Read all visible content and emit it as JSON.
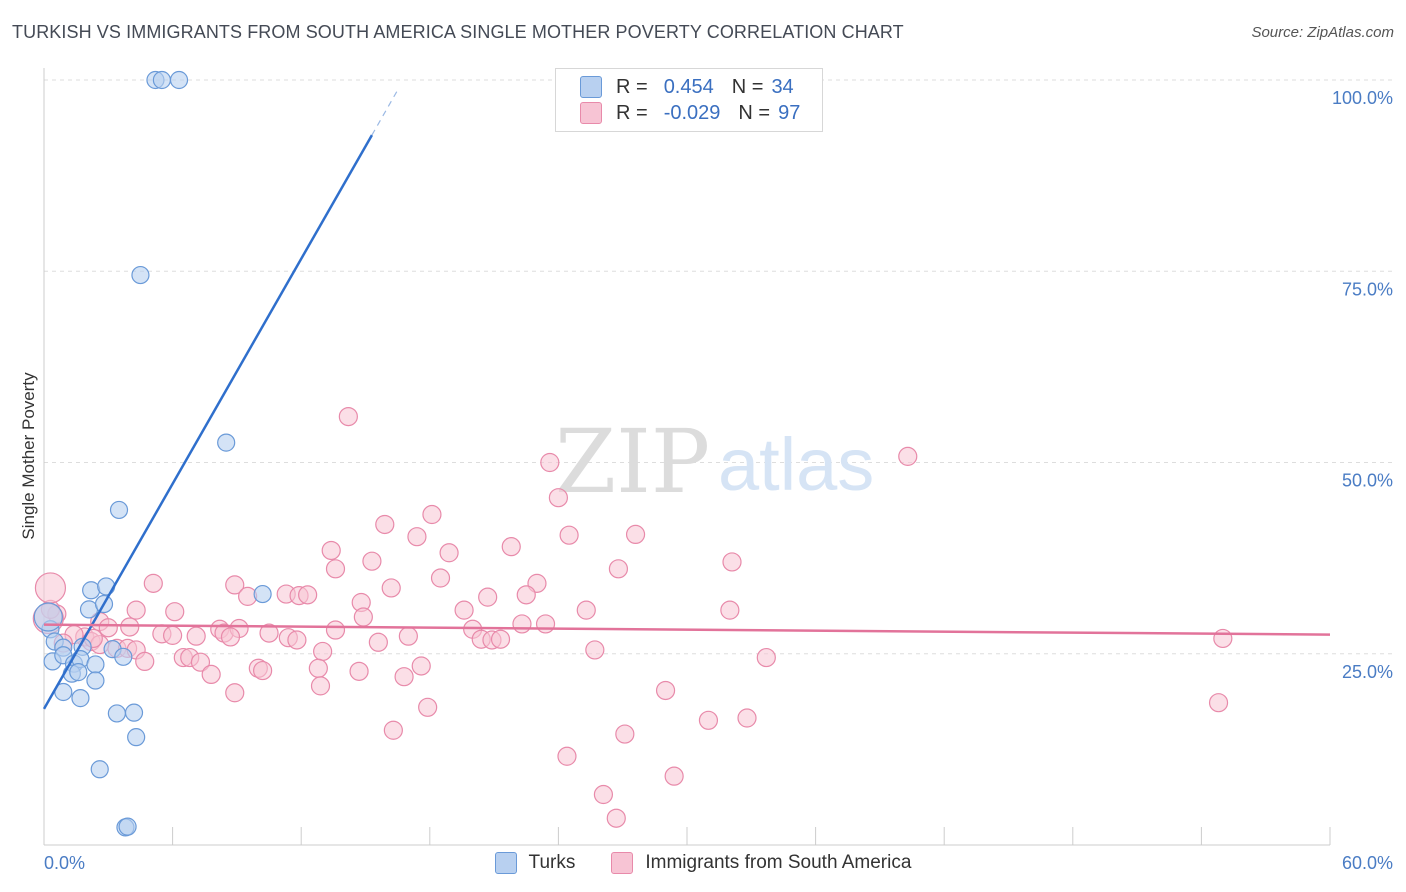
{
  "title": "TURKISH VS IMMIGRANTS FROM SOUTH AMERICA SINGLE MOTHER POVERTY CORRELATION CHART",
  "source": "Source: ZipAtlas.com",
  "watermark": {
    "zip": "ZIP",
    "atlas": "atlas"
  },
  "colors": {
    "turks_fill": "#b8d0f0",
    "turks_stroke": "#6a9ad8",
    "turks_line": "#2f6fcc",
    "sa_fill": "#f7c4d4",
    "sa_stroke": "#e88aaa",
    "sa_line": "#e2739a",
    "tick_text": "#4a7cc4",
    "grid": "#dddddd"
  },
  "legend": {
    "rows": [
      {
        "r_label": "R =",
        "r_value": "0.454",
        "n_label": "N =",
        "n_value": "34"
      },
      {
        "r_label": "R =",
        "r_value": "-0.029",
        "n_label": "N =",
        "n_value": "97"
      }
    ]
  },
  "bottom_legend": [
    "Turks",
    "Immigrants from South America"
  ],
  "chart_data": {
    "type": "scatter",
    "title": "TURKISH VS IMMIGRANTS FROM SOUTH AMERICA SINGLE MOTHER POVERTY CORRELATION CHART",
    "xlabel": "",
    "ylabel": "Single Mother Poverty",
    "xlim": [
      0,
      60
    ],
    "ylim": [
      0,
      105
    ],
    "x_tick_labels": [
      "0.0%",
      "60.0%"
    ],
    "y_ticks": [
      25,
      50,
      75,
      100
    ],
    "y_tick_labels": [
      "25.0%",
      "50.0%",
      "75.0%",
      "100.0%"
    ],
    "grid": true,
    "series": [
      {
        "name": "Turks",
        "R": 0.454,
        "N": 34,
        "trend": {
          "x0": 0.0,
          "y0": 17.8,
          "x1": 15.3,
          "y1": 92.8,
          "dash_to_x": 16.5
        },
        "points": [
          [
            5.2,
            100
          ],
          [
            5.5,
            100
          ],
          [
            6.3,
            100
          ],
          [
            4.5,
            74.5
          ],
          [
            8.5,
            52.6
          ],
          [
            3.5,
            43.8
          ],
          [
            2.2,
            33.3
          ],
          [
            2.9,
            33.8
          ],
          [
            10.2,
            32.8
          ],
          [
            2.1,
            30.8
          ],
          [
            2.8,
            31.5
          ],
          [
            0.3,
            28.2
          ],
          [
            0.5,
            26.6
          ],
          [
            0.9,
            25.8
          ],
          [
            1.8,
            25.9
          ],
          [
            3.2,
            25.6
          ],
          [
            3.7,
            24.6
          ],
          [
            0.4,
            24.0
          ],
          [
            0.9,
            24.8
          ],
          [
            1.4,
            23.7
          ],
          [
            1.7,
            24.3
          ],
          [
            2.4,
            23.6
          ],
          [
            1.3,
            22.4
          ],
          [
            1.6,
            22.6
          ],
          [
            2.4,
            21.5
          ],
          [
            0.9,
            20.0
          ],
          [
            1.7,
            19.2
          ],
          [
            3.4,
            17.2
          ],
          [
            4.2,
            17.3
          ],
          [
            4.3,
            14.1
          ],
          [
            2.6,
            9.9
          ],
          [
            3.8,
            2.3
          ],
          [
            3.9,
            2.4
          ],
          [
            0.2,
            29.8
          ]
        ]
      },
      {
        "name": "Immigrants from South America",
        "R": -0.029,
        "N": 97,
        "trend": {
          "x0": 0.0,
          "y0": 28.8,
          "x1": 60.0,
          "y1": 27.5
        },
        "points": [
          [
            14.2,
            56.0
          ],
          [
            23.6,
            50.0
          ],
          [
            40.3,
            50.8
          ],
          [
            24.0,
            45.4
          ],
          [
            18.1,
            43.2
          ],
          [
            15.9,
            41.9
          ],
          [
            17.4,
            40.3
          ],
          [
            24.5,
            40.5
          ],
          [
            27.6,
            40.6
          ],
          [
            21.8,
            39.0
          ],
          [
            13.4,
            38.5
          ],
          [
            18.9,
            38.2
          ],
          [
            15.3,
            37.1
          ],
          [
            32.1,
            37.0
          ],
          [
            13.6,
            36.1
          ],
          [
            26.8,
            36.1
          ],
          [
            18.5,
            34.9
          ],
          [
            5.1,
            34.2
          ],
          [
            8.9,
            34.0
          ],
          [
            16.2,
            33.6
          ],
          [
            23.0,
            34.2
          ],
          [
            9.5,
            32.5
          ],
          [
            11.3,
            32.8
          ],
          [
            11.9,
            32.6
          ],
          [
            12.3,
            32.7
          ],
          [
            20.7,
            32.4
          ],
          [
            22.5,
            32.7
          ],
          [
            14.8,
            31.7
          ],
          [
            4.3,
            30.7
          ],
          [
            6.1,
            30.5
          ],
          [
            19.6,
            30.7
          ],
          [
            25.3,
            30.7
          ],
          [
            32.0,
            30.7
          ],
          [
            14.9,
            29.8
          ],
          [
            22.3,
            28.9
          ],
          [
            23.4,
            28.9
          ],
          [
            2.6,
            29.2
          ],
          [
            3.0,
            28.4
          ],
          [
            4.0,
            28.5
          ],
          [
            8.2,
            28.2
          ],
          [
            8.4,
            27.7
          ],
          [
            9.1,
            28.3
          ],
          [
            20.0,
            28.2
          ],
          [
            13.6,
            28.1
          ],
          [
            5.5,
            27.6
          ],
          [
            6.0,
            27.4
          ],
          [
            7.1,
            27.3
          ],
          [
            8.7,
            27.2
          ],
          [
            10.5,
            27.7
          ],
          [
            11.4,
            27.1
          ],
          [
            11.8,
            26.8
          ],
          [
            15.6,
            26.5
          ],
          [
            17.0,
            27.3
          ],
          [
            20.4,
            26.9
          ],
          [
            20.9,
            26.8
          ],
          [
            21.3,
            26.9
          ],
          [
            55.0,
            27.0
          ],
          [
            1.9,
            27.2
          ],
          [
            2.2,
            26.6
          ],
          [
            3.4,
            25.7
          ],
          [
            3.9,
            25.7
          ],
          [
            4.3,
            25.5
          ],
          [
            2.6,
            26.2
          ],
          [
            13.0,
            25.3
          ],
          [
            25.7,
            25.5
          ],
          [
            33.7,
            24.5
          ],
          [
            4.7,
            24.0
          ],
          [
            6.5,
            24.5
          ],
          [
            6.8,
            24.5
          ],
          [
            7.3,
            23.9
          ],
          [
            10.0,
            23.1
          ],
          [
            10.2,
            22.8
          ],
          [
            12.8,
            23.1
          ],
          [
            14.7,
            22.7
          ],
          [
            17.6,
            23.4
          ],
          [
            7.8,
            22.3
          ],
          [
            16.8,
            22.0
          ],
          [
            12.9,
            20.8
          ],
          [
            8.9,
            19.9
          ],
          [
            29.0,
            20.2
          ],
          [
            17.9,
            18.0
          ],
          [
            31.0,
            16.3
          ],
          [
            32.8,
            16.6
          ],
          [
            54.8,
            18.6
          ],
          [
            16.3,
            15.0
          ],
          [
            27.1,
            14.5
          ],
          [
            24.4,
            11.6
          ],
          [
            29.4,
            9.0
          ],
          [
            26.1,
            6.6
          ],
          [
            26.7,
            3.5
          ],
          [
            0.6,
            30.2
          ],
          [
            0.3,
            30.8
          ],
          [
            1.4,
            27.5
          ],
          [
            2.3,
            27.0
          ],
          [
            0.9,
            26.4
          ],
          [
            0.3,
            33.6
          ],
          [
            0.2,
            29.6
          ]
        ]
      }
    ]
  }
}
